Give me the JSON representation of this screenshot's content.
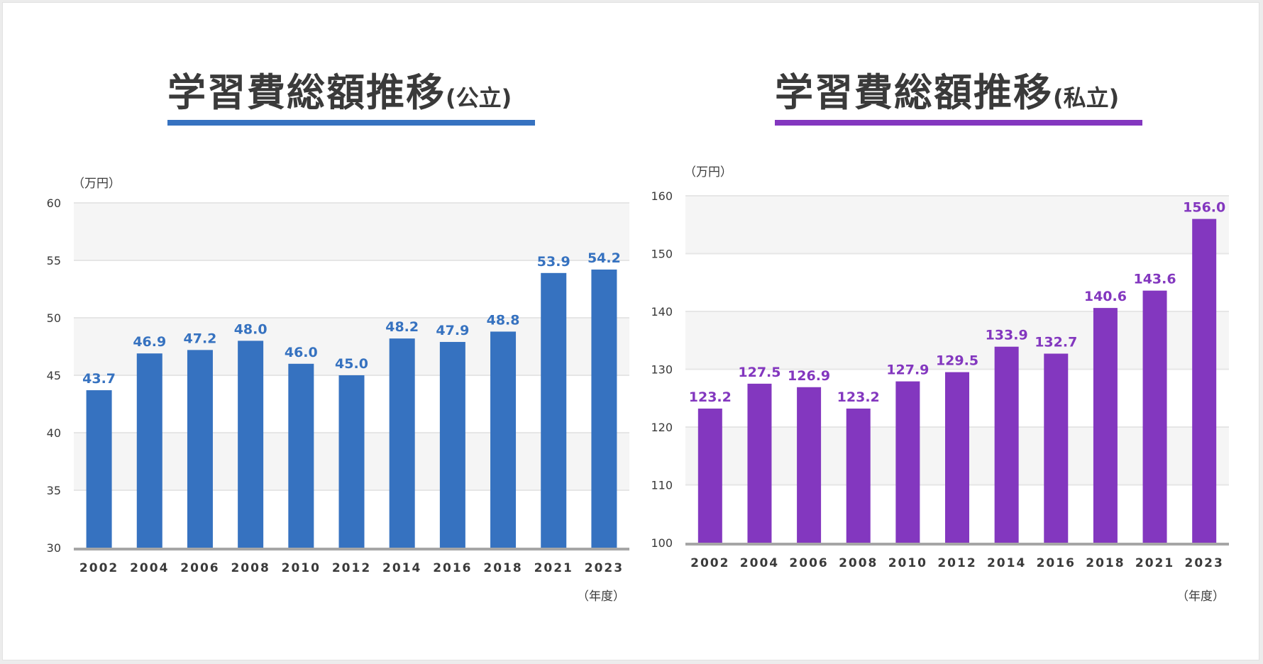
{
  "colors": {
    "public": "#3672c0",
    "private": "#8337bf",
    "text": "#3a3a3a",
    "band": "#f5f5f5",
    "axis": "#a6a6a6"
  },
  "chart_data": [
    {
      "type": "bar",
      "title": "学習費総額推移",
      "subtitle": "(公立)",
      "unit_label": "（万円）",
      "x_unit_label": "（年度）",
      "categories": [
        "2002",
        "2004",
        "2006",
        "2008",
        "2010",
        "2012",
        "2014",
        "2016",
        "2018",
        "2021",
        "2023"
      ],
      "values": [
        43.7,
        46.9,
        47.2,
        48.0,
        46.0,
        45.0,
        48.2,
        47.9,
        48.8,
        53.9,
        54.2
      ],
      "value_labels": [
        "43.7",
        "46.9",
        "47.2",
        "48.0",
        "46.0",
        "45.0",
        "48.2",
        "47.9",
        "48.8",
        "53.9",
        "54.2"
      ],
      "yticks": [
        "30",
        "35",
        "40",
        "45",
        "50",
        "55",
        "60"
      ],
      "ylim": [
        30,
        60
      ],
      "grid": true
    },
    {
      "type": "bar",
      "title": "学習費総額推移",
      "subtitle": "(私立)",
      "unit_label": "（万円）",
      "x_unit_label": "（年度）",
      "categories": [
        "2002",
        "2004",
        "2006",
        "2008",
        "2010",
        "2012",
        "2014",
        "2016",
        "2018",
        "2021",
        "2023"
      ],
      "values": [
        123.2,
        127.5,
        126.9,
        123.2,
        127.9,
        129.5,
        133.9,
        132.7,
        140.6,
        143.6,
        156.0
      ],
      "value_labels": [
        "123.2",
        "127.5",
        "126.9",
        "123.2",
        "127.9",
        "129.5",
        "133.9",
        "132.7",
        "140.6",
        "143.6",
        "156.0"
      ],
      "yticks": [
        "100",
        "110",
        "120",
        "130",
        "140",
        "150",
        "160"
      ],
      "ylim": [
        100,
        160
      ],
      "grid": true
    }
  ]
}
